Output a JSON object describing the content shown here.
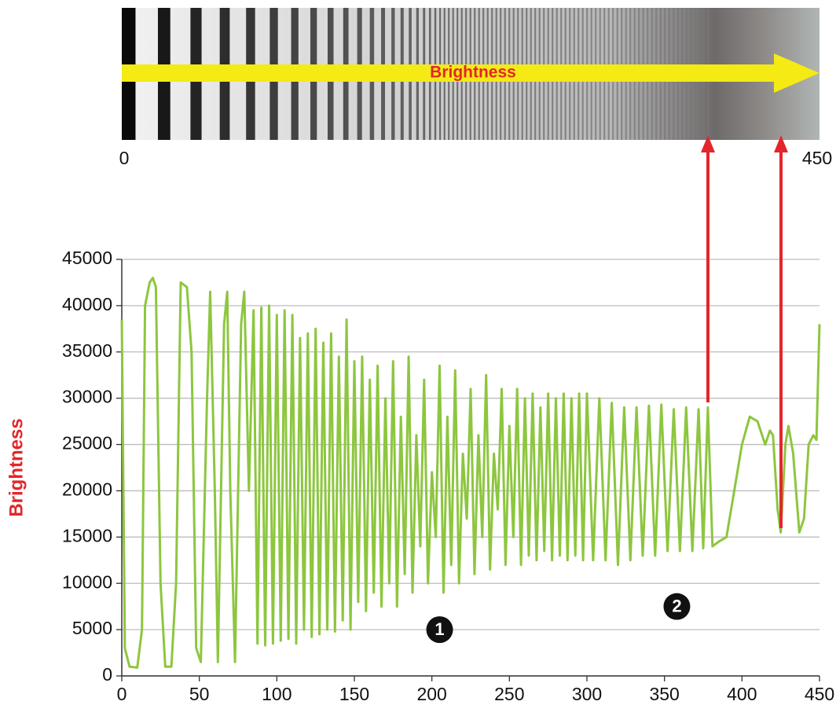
{
  "gradient_bar": {
    "label": "Brightness",
    "start": "0",
    "end": "450"
  },
  "chart_data": {
    "type": "line",
    "y_label": "Brightness",
    "color": "#8dc63f",
    "xlim": [
      0,
      450
    ],
    "xticks": [
      0,
      50,
      100,
      150,
      200,
      250,
      300,
      350,
      400,
      450
    ],
    "ylim": [
      0,
      45000
    ],
    "yticks": [
      0,
      5000,
      10000,
      15000,
      20000,
      25000,
      30000,
      35000,
      40000,
      45000
    ],
    "grid": true,
    "markers": [
      {
        "label": "1",
        "x": 205,
        "y": 5000
      },
      {
        "label": "2",
        "x": 358,
        "y": 7500
      }
    ],
    "x": [
      0,
      2,
      5,
      10,
      13,
      15,
      18,
      20,
      22,
      25,
      28,
      32,
      35,
      38,
      42,
      45,
      48,
      51,
      55,
      57,
      60,
      62,
      66,
      68,
      70,
      73,
      77,
      79,
      82,
      85,
      87.5,
      90,
      92.5,
      95,
      97.5,
      100,
      102.5,
      105,
      107.5,
      110,
      112.5,
      115,
      117.5,
      120,
      122.5,
      125,
      127.5,
      130,
      132.5,
      135,
      137.5,
      140,
      142.5,
      145,
      147.5,
      150,
      152.5,
      155,
      157.5,
      160,
      162.5,
      165,
      167.5,
      170,
      172.5,
      175,
      177.5,
      180,
      182.5,
      185,
      187.5,
      190,
      192.5,
      195,
      197.5,
      200,
      202.5,
      205,
      207.5,
      210,
      212.5,
      215,
      217.5,
      220,
      222.5,
      225,
      227.5,
      230,
      232.5,
      235,
      237.5,
      240,
      242.5,
      245,
      247.5,
      250,
      252.5,
      255,
      257.5,
      260,
      262.5,
      265,
      267.5,
      270,
      272.5,
      275,
      277.5,
      280,
      282.5,
      285,
      287.5,
      290,
      292.5,
      295,
      297.5,
      300,
      304,
      308,
      312,
      316,
      320,
      324,
      328,
      332,
      336,
      340,
      344,
      348,
      352,
      356,
      360,
      364,
      368,
      372,
      375,
      378,
      381,
      385,
      390,
      395,
      400,
      405,
      410,
      415,
      418,
      420,
      423,
      425,
      428,
      430,
      433,
      437,
      440,
      443,
      446,
      448,
      450
    ],
    "values": [
      38500,
      3000,
      1000,
      900,
      5000,
      40000,
      42500,
      43000,
      42000,
      10000,
      1000,
      1000,
      10000,
      42500,
      42000,
      35000,
      3000,
      1500,
      30000,
      41500,
      20000,
      1500,
      38000,
      41500,
      20000,
      1500,
      38000,
      41500,
      20000,
      39500,
      3500,
      39800,
      3300,
      40000,
      3500,
      39000,
      3800,
      39500,
      4000,
      39000,
      3500,
      36500,
      5000,
      37000,
      4200,
      37500,
      4500,
      36000,
      5000,
      37000,
      4800,
      34500,
      6000,
      38500,
      5000,
      34000,
      8000,
      34500,
      7000,
      32000,
      9000,
      33500,
      7500,
      30000,
      10000,
      34000,
      7500,
      28000,
      11000,
      34500,
      9000,
      26000,
      14000,
      32000,
      10000,
      22000,
      15000,
      33500,
      9000,
      28000,
      12000,
      33000,
      10000,
      24000,
      17000,
      31000,
      11000,
      26000,
      15000,
      32500,
      11500,
      24000,
      18000,
      31000,
      12000,
      27000,
      15000,
      31000,
      12000,
      30000,
      13000,
      30500,
      12500,
      29000,
      13500,
      30500,
      12500,
      30000,
      13000,
      30500,
      12500,
      30000,
      13000,
      30500,
      12500,
      30500,
      12500,
      30000,
      12500,
      29500,
      12000,
      29000,
      12500,
      29000,
      13000,
      29200,
      13000,
      29300,
      13500,
      28800,
      13500,
      29000,
      13500,
      28800,
      13800,
      29000,
      14000,
      14500,
      15000,
      20000,
      25000,
      28000,
      27500,
      25000,
      26500,
      26000,
      18000,
      15500,
      25000,
      27000,
      24000,
      15500,
      17000,
      25000,
      26000,
      25500,
      38000
    ]
  }
}
